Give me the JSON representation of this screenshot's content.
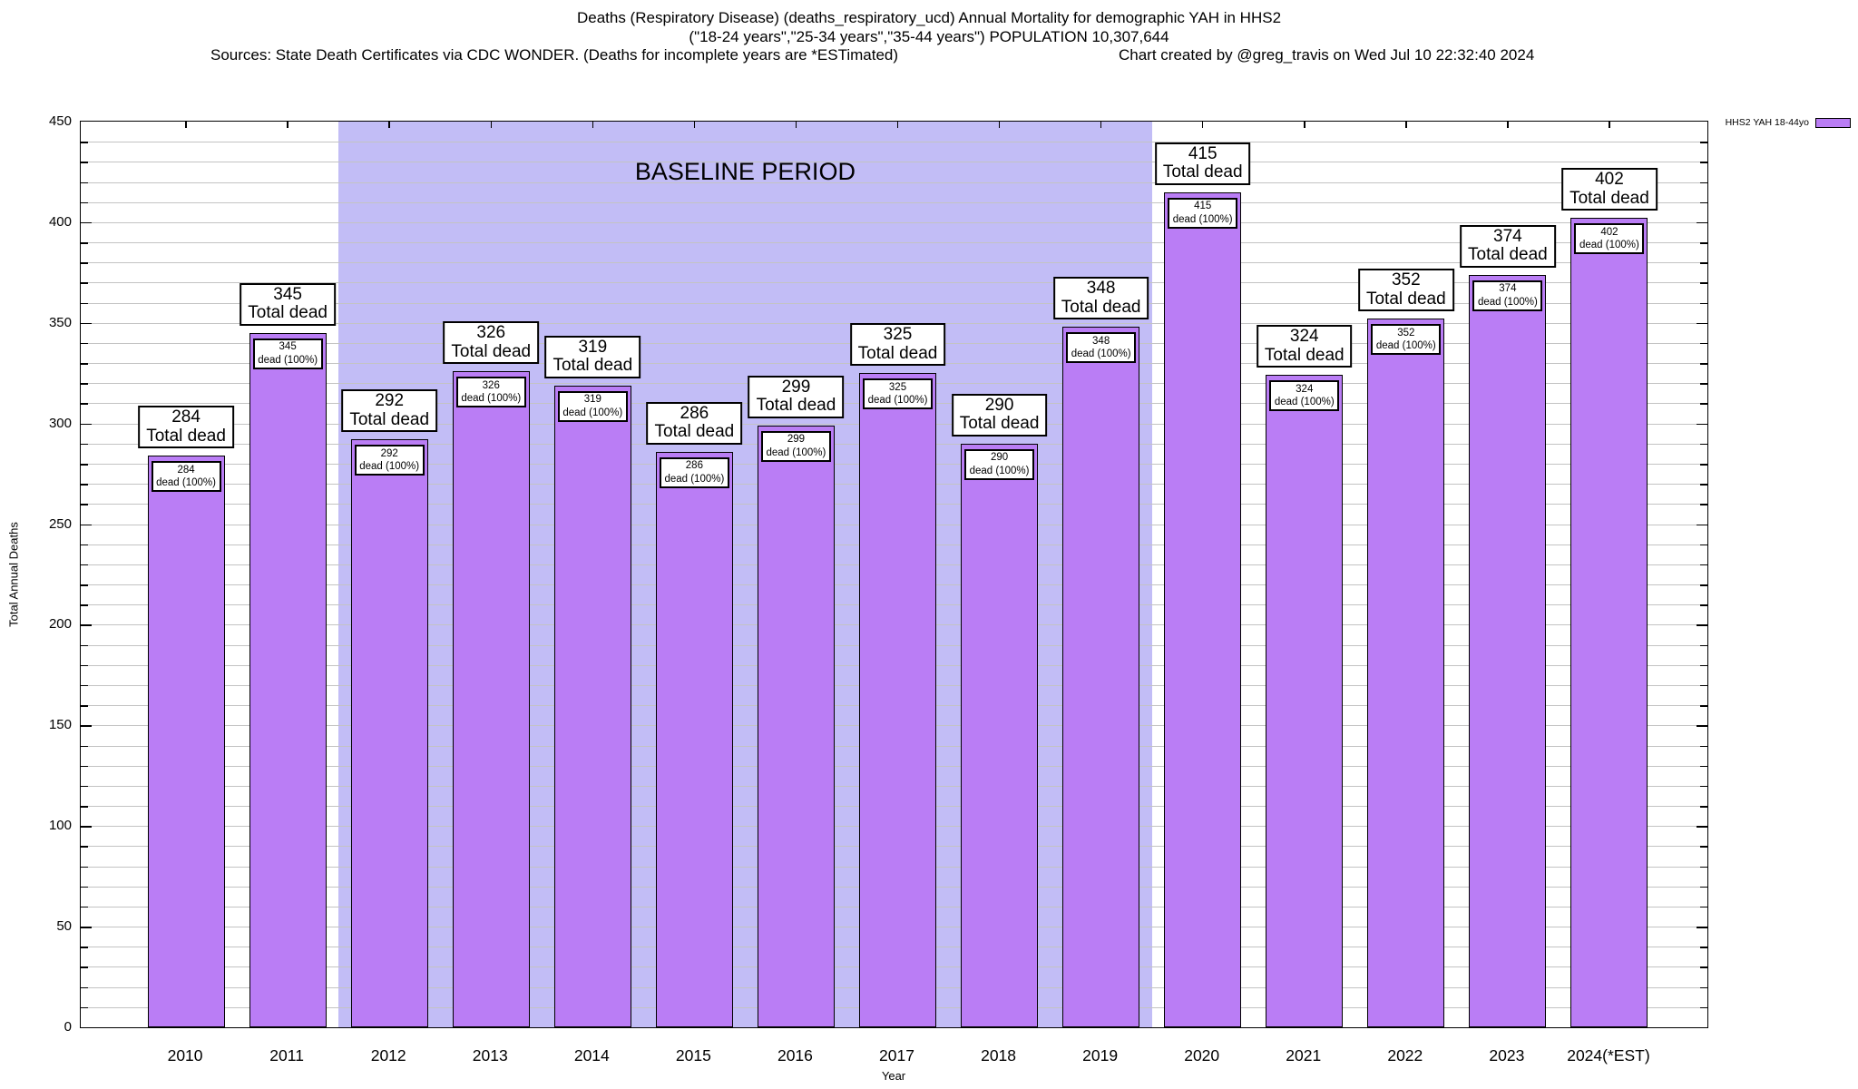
{
  "title": {
    "line1": "Deaths (Respiratory Disease) (deaths_respiratory_ucd) Annual Mortality for demographic YAH in HHS2",
    "line2": "(\"18-24 years\",\"25-34 years\",\"35-44 years\") POPULATION 10,307,644",
    "sources": "Sources: State Death Certificates via CDC WONDER. (Deaths for incomplete years are *ESTimated)",
    "credit": "Chart created by @greg_travis on Wed Jul 10 22:32:40 2024"
  },
  "legend": {
    "label": "HHS2 YAH 18-44yo",
    "swatch_color": "#ba7df5"
  },
  "chart_data": {
    "type": "bar",
    "title": "Deaths (Respiratory Disease) (deaths_respiratory_ucd) Annual Mortality for demographic YAH in HHS2",
    "series_name": "HHS2 YAH 18-44yo",
    "categories": [
      "2010",
      "2011",
      "2012",
      "2013",
      "2014",
      "2015",
      "2016",
      "2017",
      "2018",
      "2019",
      "2020",
      "2021",
      "2022",
      "2023",
      "2024(*EST)"
    ],
    "values": [
      284,
      345,
      292,
      326,
      319,
      286,
      299,
      325,
      290,
      348,
      415,
      324,
      352,
      374,
      402
    ],
    "xlabel": "Year",
    "ylabel": "Total Annual Deaths",
    "ylim": [
      0,
      450
    ],
    "y_ticks": [
      0,
      50,
      100,
      150,
      200,
      250,
      300,
      350,
      400,
      450
    ],
    "grid_step": 10,
    "grid": true,
    "legend_position": "top-right",
    "bar_color": "#ba7df5",
    "annotation_above_line2": "Total dead",
    "annotation_inner_line2": "dead (100%)",
    "baseline_period": {
      "label": "BASELINE PERIOD",
      "from": "2012",
      "to": "2019",
      "fill": "#c2bdf6"
    }
  },
  "colors": {
    "grid": "#c3c3c3",
    "axis": "#000000",
    "background": "#ffffff"
  }
}
